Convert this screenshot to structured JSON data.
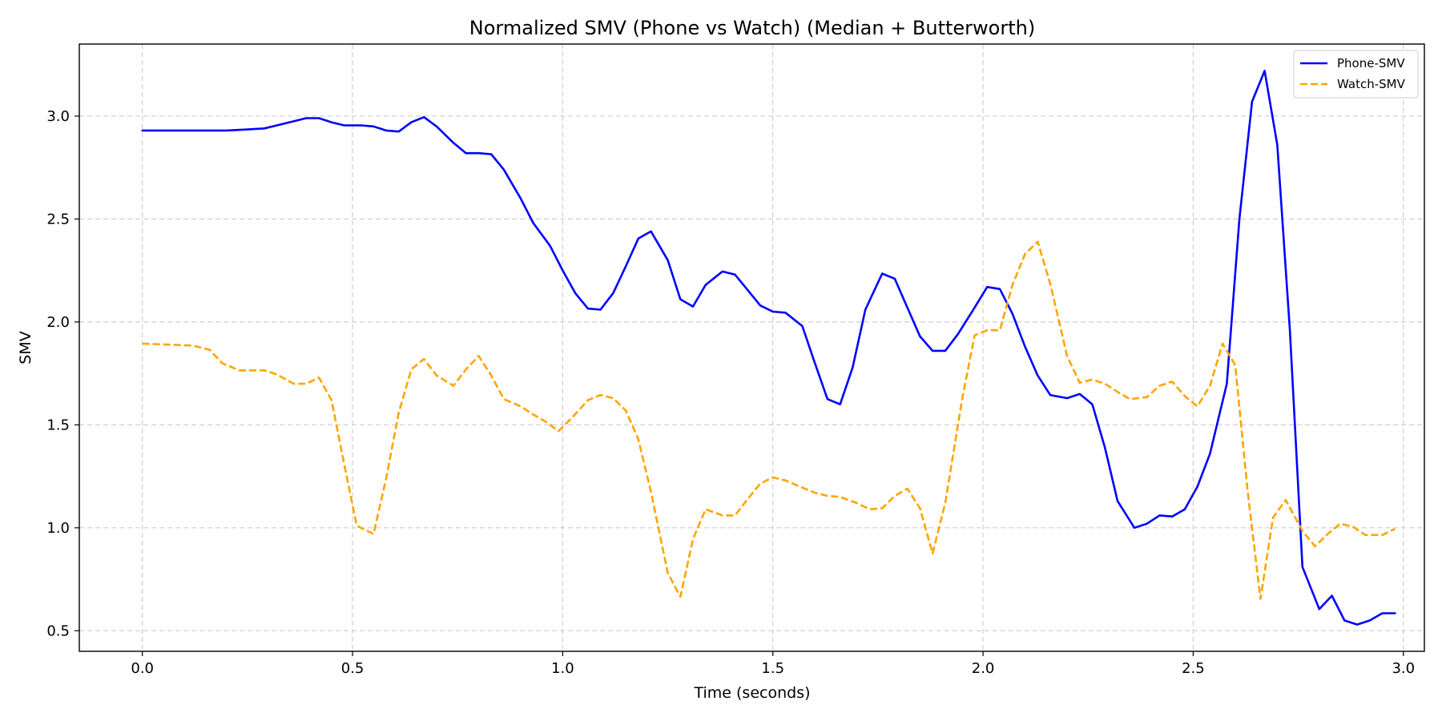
{
  "chart_data": {
    "type": "line",
    "title": "Normalized SMV (Phone vs Watch) (Median + Butterworth)",
    "xlabel": "Time (seconds)",
    "ylabel": "SMV",
    "xlim": [
      -0.15,
      3.05
    ],
    "ylim": [
      0.4,
      3.35
    ],
    "xticks": [
      0.0,
      0.5,
      1.0,
      1.5,
      2.0,
      2.5,
      3.0
    ],
    "xtick_labels": [
      "0.0",
      "0.5",
      "1.0",
      "1.5",
      "2.0",
      "2.5",
      "3.0"
    ],
    "yticks": [
      0.5,
      1.0,
      1.5,
      2.0,
      2.5,
      3.0
    ],
    "ytick_labels": [
      "0.5",
      "1.0",
      "1.5",
      "2.0",
      "2.5",
      "3.0"
    ],
    "grid": true,
    "legend_position": "top-right",
    "series": [
      {
        "name": "Phone-SMV",
        "color": "#0000ff",
        "style": "solid",
        "x": [
          0.0,
          0.1,
          0.2,
          0.25,
          0.29,
          0.32,
          0.36,
          0.39,
          0.42,
          0.45,
          0.48,
          0.52,
          0.55,
          0.58,
          0.61,
          0.64,
          0.67,
          0.7,
          0.74,
          0.77,
          0.8,
          0.83,
          0.86,
          0.9,
          0.93,
          0.97,
          1.0,
          1.03,
          1.06,
          1.09,
          1.12,
          1.15,
          1.18,
          1.21,
          1.25,
          1.28,
          1.31,
          1.34,
          1.38,
          1.41,
          1.44,
          1.47,
          1.5,
          1.53,
          1.57,
          1.6,
          1.63,
          1.66,
          1.69,
          1.72,
          1.76,
          1.79,
          1.82,
          1.85,
          1.88,
          1.91,
          1.94,
          1.98,
          2.01,
          2.04,
          2.07,
          2.1,
          2.13,
          2.16,
          2.2,
          2.23,
          2.26,
          2.29,
          2.32,
          2.36,
          2.39,
          2.42,
          2.45,
          2.48,
          2.51,
          2.54,
          2.58,
          2.61,
          2.64,
          2.67,
          2.7,
          2.73,
          2.76,
          2.8,
          2.83,
          2.86,
          2.89,
          2.92,
          2.95,
          2.98
        ],
        "y": [
          2.93,
          2.93,
          2.93,
          2.935,
          2.94,
          2.955,
          2.975,
          2.99,
          2.99,
          2.97,
          2.955,
          2.955,
          2.95,
          2.93,
          2.925,
          2.97,
          2.995,
          2.95,
          2.87,
          2.82,
          2.82,
          2.815,
          2.74,
          2.6,
          2.48,
          2.37,
          2.25,
          2.14,
          2.065,
          2.06,
          2.14,
          2.27,
          2.405,
          2.44,
          2.3,
          2.11,
          2.075,
          2.18,
          2.245,
          2.23,
          2.155,
          2.08,
          2.05,
          2.045,
          1.98,
          1.8,
          1.625,
          1.6,
          1.78,
          2.06,
          2.235,
          2.21,
          2.07,
          1.93,
          1.86,
          1.86,
          1.94,
          2.07,
          2.17,
          2.16,
          2.04,
          1.88,
          1.74,
          1.645,
          1.63,
          1.65,
          1.6,
          1.39,
          1.13,
          1.0,
          1.02,
          1.06,
          1.055,
          1.09,
          1.2,
          1.36,
          1.7,
          2.5,
          3.07,
          3.22,
          2.86,
          1.96,
          0.81,
          0.605,
          0.67,
          0.55,
          0.53,
          0.55,
          0.585,
          0.585
        ]
      },
      {
        "name": "Watch-SMV",
        "color": "#ffa500",
        "style": "dashed",
        "x": [
          0.0,
          0.06,
          0.12,
          0.16,
          0.19,
          0.23,
          0.26,
          0.29,
          0.32,
          0.36,
          0.39,
          0.42,
          0.45,
          0.48,
          0.51,
          0.55,
          0.58,
          0.61,
          0.64,
          0.67,
          0.7,
          0.74,
          0.77,
          0.8,
          0.83,
          0.86,
          0.9,
          0.93,
          0.96,
          0.99,
          1.02,
          1.06,
          1.09,
          1.12,
          1.15,
          1.18,
          1.21,
          1.25,
          1.28,
          1.31,
          1.34,
          1.38,
          1.41,
          1.44,
          1.47,
          1.5,
          1.53,
          1.57,
          1.6,
          1.63,
          1.66,
          1.7,
          1.73,
          1.76,
          1.79,
          1.82,
          1.85,
          1.88,
          1.91,
          1.95,
          1.98,
          2.01,
          2.04,
          2.07,
          2.1,
          2.13,
          2.16,
          2.2,
          2.23,
          2.26,
          2.29,
          2.32,
          2.35,
          2.39,
          2.42,
          2.45,
          2.48,
          2.51,
          2.54,
          2.57,
          2.6,
          2.63,
          2.66,
          2.69,
          2.72,
          2.76,
          2.79,
          2.82,
          2.85,
          2.88,
          2.91,
          2.95,
          2.98
        ],
        "y": [
          1.895,
          1.89,
          1.885,
          1.865,
          1.8,
          1.765,
          1.765,
          1.765,
          1.745,
          1.7,
          1.7,
          1.73,
          1.62,
          1.31,
          1.01,
          0.97,
          1.24,
          1.56,
          1.77,
          1.82,
          1.74,
          1.69,
          1.77,
          1.835,
          1.74,
          1.625,
          1.59,
          1.55,
          1.515,
          1.47,
          1.53,
          1.62,
          1.645,
          1.63,
          1.57,
          1.43,
          1.175,
          0.78,
          0.665,
          0.945,
          1.09,
          1.06,
          1.06,
          1.14,
          1.215,
          1.245,
          1.23,
          1.195,
          1.17,
          1.155,
          1.15,
          1.12,
          1.09,
          1.095,
          1.155,
          1.19,
          1.095,
          0.875,
          1.12,
          1.62,
          1.935,
          1.96,
          1.96,
          2.18,
          2.33,
          2.39,
          2.185,
          1.835,
          1.705,
          1.72,
          1.7,
          1.66,
          1.625,
          1.635,
          1.69,
          1.71,
          1.64,
          1.59,
          1.69,
          1.895,
          1.79,
          1.17,
          0.655,
          1.05,
          1.135,
          0.985,
          0.91,
          0.97,
          1.02,
          1.005,
          0.965,
          0.965,
          0.995
        ]
      }
    ]
  }
}
